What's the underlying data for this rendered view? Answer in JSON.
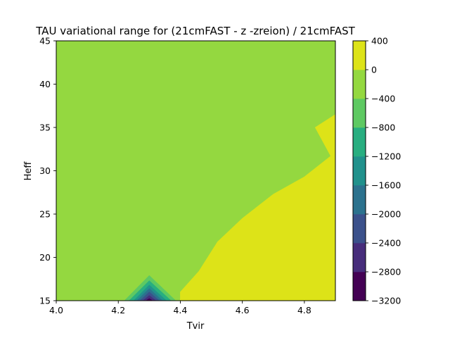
{
  "chart_data": {
    "type": "contourf",
    "title": "TAU variational range for (21cmFAST - z -zreion) / 21cmFAST",
    "xlabel": "Tvir",
    "ylabel": "Heff",
    "xlim": [
      4.0,
      4.9
    ],
    "ylim": [
      15,
      45
    ],
    "x_ticks": [
      4.0,
      4.2,
      4.4,
      4.6,
      4.8
    ],
    "x_tick_labels": [
      "4.0",
      "4.2",
      "4.4",
      "4.6",
      "4.8"
    ],
    "y_ticks": [
      15,
      20,
      25,
      30,
      35,
      40,
      45
    ],
    "y_tick_labels": [
      "15",
      "20",
      "25",
      "30",
      "35",
      "40",
      "45"
    ],
    "colorbar": {
      "levels": [
        -3200,
        -2800,
        -2400,
        -2000,
        -1600,
        -1200,
        -800,
        -400,
        0,
        400
      ],
      "tick_labels": [
        "−3200",
        "−2800",
        "−2400",
        "−2000",
        "−1600",
        "−1200",
        "−800",
        "−400",
        "0",
        "400"
      ],
      "colors": [
        "#440154",
        "#472d7b",
        "#3b518b",
        "#2c728e",
        "#21918c",
        "#28ae80",
        "#5ec962",
        "#94d840",
        "#dde318"
      ]
    },
    "background_level_color": "#94d840",
    "regions": [
      {
        "name": "high-region",
        "color": "#dde318",
        "points": [
          [
            4.4,
            15
          ],
          [
            4.9,
            15
          ],
          [
            4.9,
            36.5
          ],
          [
            4.835,
            35.0
          ],
          [
            4.885,
            31.7
          ],
          [
            4.8,
            29.3
          ],
          [
            4.7,
            27.3
          ],
          [
            4.6,
            24.5
          ],
          [
            4.52,
            21.8
          ],
          [
            4.46,
            18.4
          ],
          [
            4.4,
            16.0
          ]
        ]
      },
      {
        "name": "dip-outer",
        "color": "#5ec962",
        "points": [
          [
            4.22,
            15
          ],
          [
            4.3,
            17.9
          ],
          [
            4.385,
            15
          ]
        ]
      },
      {
        "name": "dip-2",
        "color": "#28ae80",
        "points": [
          [
            4.235,
            15
          ],
          [
            4.3,
            17.3
          ],
          [
            4.37,
            15
          ]
        ]
      },
      {
        "name": "dip-3",
        "color": "#21918c",
        "points": [
          [
            4.25,
            15
          ],
          [
            4.3,
            16.8
          ],
          [
            4.355,
            15
          ]
        ]
      },
      {
        "name": "dip-4",
        "color": "#2c728e",
        "points": [
          [
            4.26,
            15
          ],
          [
            4.3,
            16.4
          ],
          [
            4.342,
            15
          ]
        ]
      },
      {
        "name": "dip-5",
        "color": "#3b518b",
        "points": [
          [
            4.27,
            15
          ],
          [
            4.3,
            16.0
          ],
          [
            4.332,
            15
          ]
        ]
      },
      {
        "name": "dip-6",
        "color": "#472d7b",
        "points": [
          [
            4.28,
            15
          ],
          [
            4.3,
            15.6
          ],
          [
            4.321,
            15
          ]
        ]
      },
      {
        "name": "dip-core",
        "color": "#440154",
        "points": [
          [
            4.29,
            15
          ],
          [
            4.3,
            15.25
          ],
          [
            4.31,
            15
          ]
        ]
      }
    ]
  }
}
